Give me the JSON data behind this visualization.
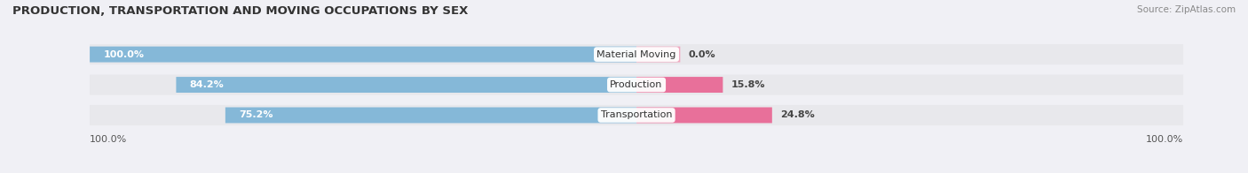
{
  "title": "PRODUCTION, TRANSPORTATION AND MOVING OCCUPATIONS BY SEX",
  "source": "Source: ZipAtlas.com",
  "categories": [
    "Material Moving",
    "Production",
    "Transportation"
  ],
  "male_values": [
    100.0,
    84.2,
    75.2
  ],
  "female_values": [
    0.0,
    15.8,
    24.8
  ],
  "male_color": "#85b8d8",
  "female_color": "#e8709a",
  "female_color_light": "#f0a8c0",
  "bar_height": 0.52,
  "bg_strip_color": "#e8e8ec",
  "title_fontsize": 9.5,
  "source_fontsize": 7.5,
  "tick_fontsize": 8,
  "label_fontsize": 8,
  "category_fontsize": 8,
  "legend_fontsize": 8,
  "axis_label_left": "100.0%",
  "axis_label_right": "100.0%",
  "fig_bg": "#f0f0f5"
}
